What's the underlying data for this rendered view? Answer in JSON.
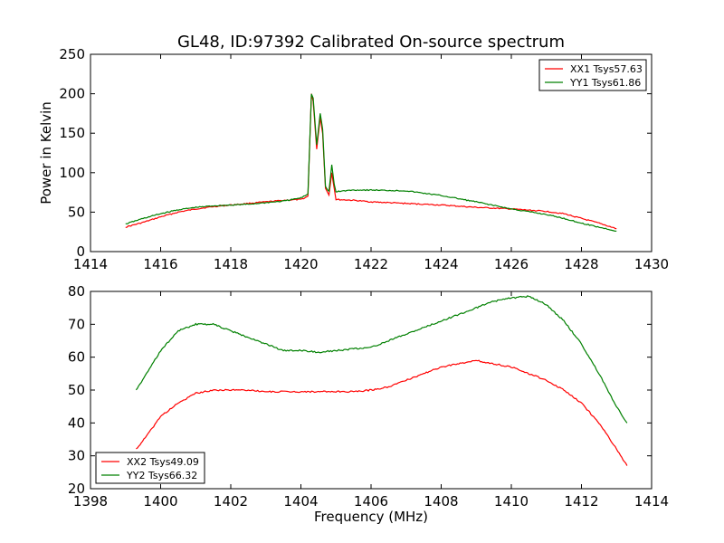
{
  "figure": {
    "title": "GL48, ID:97392 Calibrated On-source spectrum",
    "xlabel": "Frequency (MHz)",
    "ylabel_top": "Power in Kelvin"
  },
  "colors": {
    "xx": "#ff0000",
    "yy": "#008000"
  },
  "chart_data": [
    {
      "type": "line",
      "title": "GL48, ID:97392 Calibrated On-source spectrum",
      "xlabel": "",
      "ylabel": "Power in Kelvin",
      "xlim": [
        1414,
        1430
      ],
      "ylim": [
        0,
        250
      ],
      "xticks": [
        1414,
        1416,
        1418,
        1420,
        1422,
        1424,
        1426,
        1428,
        1430
      ],
      "yticks": [
        0,
        50,
        100,
        150,
        200,
        250
      ],
      "legend_position": "top-right",
      "grid": false,
      "series": [
        {
          "name": "XX1 Tsys57.63",
          "color": "#ff0000",
          "points": [
            [
              1415.0,
              31
            ],
            [
              1415.5,
              37
            ],
            [
              1416.0,
              44
            ],
            [
              1416.5,
              50
            ],
            [
              1417.0,
              54
            ],
            [
              1417.5,
              57
            ],
            [
              1418.0,
              59
            ],
            [
              1418.5,
              61
            ],
            [
              1419.0,
              63
            ],
            [
              1419.5,
              65
            ],
            [
              1420.0,
              66
            ],
            [
              1420.2,
              70
            ],
            [
              1420.3,
              200
            ],
            [
              1420.35,
              190
            ],
            [
              1420.45,
              130
            ],
            [
              1420.55,
              170
            ],
            [
              1420.62,
              150
            ],
            [
              1420.7,
              80
            ],
            [
              1420.8,
              72
            ],
            [
              1420.88,
              100
            ],
            [
              1420.95,
              80
            ],
            [
              1421.0,
              66
            ],
            [
              1421.5,
              65
            ],
            [
              1422.0,
              63
            ],
            [
              1423.0,
              61
            ],
            [
              1424.0,
              59
            ],
            [
              1425.0,
              56
            ],
            [
              1426.0,
              54
            ],
            [
              1427.0,
              51
            ],
            [
              1427.5,
              48
            ],
            [
              1428.0,
              42
            ],
            [
              1428.5,
              36
            ],
            [
              1429.0,
              29
            ]
          ]
        },
        {
          "name": "YY1 Tsys61.86",
          "color": "#008000",
          "points": [
            [
              1415.0,
              35
            ],
            [
              1415.5,
              42
            ],
            [
              1416.0,
              48
            ],
            [
              1416.5,
              53
            ],
            [
              1417.0,
              56
            ],
            [
              1417.5,
              58
            ],
            [
              1418.0,
              59
            ],
            [
              1418.5,
              60
            ],
            [
              1419.0,
              62
            ],
            [
              1419.5,
              64
            ],
            [
              1420.0,
              68
            ],
            [
              1420.2,
              73
            ],
            [
              1420.3,
              200
            ],
            [
              1420.35,
              195
            ],
            [
              1420.45,
              135
            ],
            [
              1420.55,
              175
            ],
            [
              1420.62,
              155
            ],
            [
              1420.7,
              82
            ],
            [
              1420.8,
              76
            ],
            [
              1420.88,
              110
            ],
            [
              1420.95,
              85
            ],
            [
              1421.0,
              76
            ],
            [
              1421.5,
              78
            ],
            [
              1422.0,
              78
            ],
            [
              1423.0,
              77
            ],
            [
              1424.0,
              71
            ],
            [
              1425.0,
              63
            ],
            [
              1426.0,
              54
            ],
            [
              1427.0,
              47
            ],
            [
              1427.5,
              42
            ],
            [
              1428.0,
              36
            ],
            [
              1428.5,
              31
            ],
            [
              1429.0,
              26
            ]
          ]
        }
      ]
    },
    {
      "type": "line",
      "title": "",
      "xlabel": "Frequency (MHz)",
      "ylabel": "",
      "xlim": [
        1398,
        1414
      ],
      "ylim": [
        20,
        80
      ],
      "xticks": [
        1398,
        1400,
        1402,
        1404,
        1406,
        1408,
        1410,
        1412,
        1414
      ],
      "yticks": [
        20,
        30,
        40,
        50,
        60,
        70,
        80
      ],
      "legend_position": "bottom-left",
      "grid": false,
      "series": [
        {
          "name": "XX2 Tsys49.09",
          "color": "#ff0000",
          "points": [
            [
              1399.3,
              32
            ],
            [
              1399.6,
              36
            ],
            [
              1400.0,
              42
            ],
            [
              1400.5,
              46
            ],
            [
              1401.0,
              49
            ],
            [
              1401.5,
              50
            ],
            [
              1402.0,
              50
            ],
            [
              1402.5,
              50
            ],
            [
              1403.0,
              49.5
            ],
            [
              1403.5,
              49.5
            ],
            [
              1404.0,
              49.5
            ],
            [
              1404.5,
              49.5
            ],
            [
              1405.0,
              49.5
            ],
            [
              1405.5,
              49.5
            ],
            [
              1406.0,
              50
            ],
            [
              1406.5,
              51
            ],
            [
              1407.0,
              53
            ],
            [
              1407.5,
              55
            ],
            [
              1408.0,
              57
            ],
            [
              1408.5,
              58
            ],
            [
              1409.0,
              59
            ],
            [
              1409.5,
              58
            ],
            [
              1410.0,
              57
            ],
            [
              1410.5,
              55
            ],
            [
              1411.0,
              53
            ],
            [
              1411.5,
              50
            ],
            [
              1412.0,
              46
            ],
            [
              1412.5,
              40
            ],
            [
              1413.0,
              32
            ],
            [
              1413.3,
              27
            ]
          ]
        },
        {
          "name": "YY2 Tsys66.32",
          "color": "#008000",
          "points": [
            [
              1399.3,
              50
            ],
            [
              1399.6,
              55
            ],
            [
              1400.0,
              62
            ],
            [
              1400.5,
              68
            ],
            [
              1401.0,
              70
            ],
            [
              1401.5,
              70
            ],
            [
              1402.0,
              68
            ],
            [
              1402.5,
              66
            ],
            [
              1403.0,
              64
            ],
            [
              1403.5,
              62
            ],
            [
              1404.0,
              62
            ],
            [
              1404.5,
              61.5
            ],
            [
              1405.0,
              62
            ],
            [
              1405.5,
              62.5
            ],
            [
              1406.0,
              63
            ],
            [
              1406.5,
              65
            ],
            [
              1407.0,
              67
            ],
            [
              1407.5,
              69
            ],
            [
              1408.0,
              71
            ],
            [
              1408.5,
              73
            ],
            [
              1409.0,
              75
            ],
            [
              1409.5,
              77
            ],
            [
              1410.0,
              78
            ],
            [
              1410.5,
              78.5
            ],
            [
              1411.0,
              76
            ],
            [
              1411.5,
              71
            ],
            [
              1412.0,
              64
            ],
            [
              1412.5,
              55
            ],
            [
              1413.0,
              45
            ],
            [
              1413.3,
              40
            ]
          ]
        }
      ]
    }
  ]
}
